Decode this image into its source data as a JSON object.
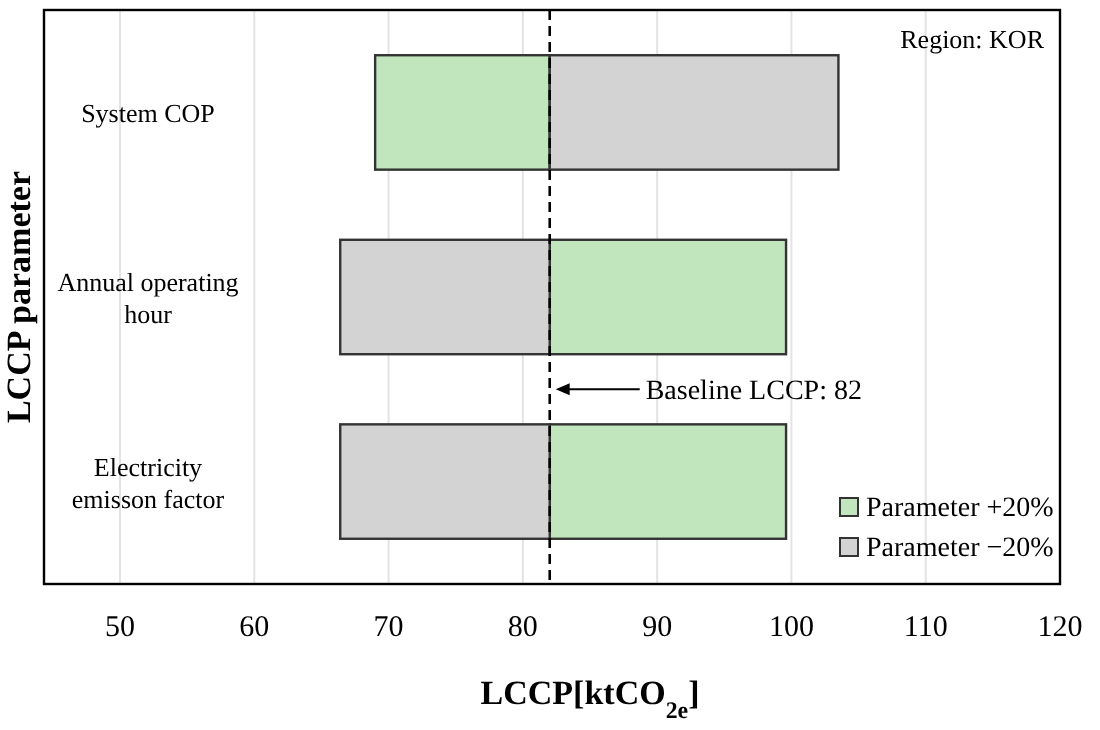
{
  "chart_data": {
    "type": "bar",
    "orientation": "horizontal",
    "xlabel": "LCCP[ktCO$_{2e}$]",
    "ylabel": "LCCP parameter",
    "categories": [
      "System COP",
      "Annual operating hour",
      "Electricity emisson factor"
    ],
    "series": [
      {
        "name": "Parameter +20%",
        "color": "#c1e6bd",
        "base": [
          82,
          82,
          82
        ],
        "values": [
          -13,
          17.6,
          17.6
        ]
      },
      {
        "name": "Parameter −20%",
        "color": "#d3d3d3",
        "base": [
          82,
          82,
          82
        ],
        "values": [
          21.5,
          -15.6,
          -15.6
        ]
      }
    ],
    "xlim": [
      50,
      120
    ],
    "xticks": [
      50,
      60,
      70,
      80,
      90,
      100,
      110,
      120
    ],
    "grid": "x",
    "legend": "bottom right",
    "ref_lines": [
      {
        "axis": "x",
        "value": 82,
        "label": "Baseline LCCP: 82",
        "line_style": "dashed"
      }
    ],
    "annotations": [
      "Region: KOR"
    ]
  }
}
